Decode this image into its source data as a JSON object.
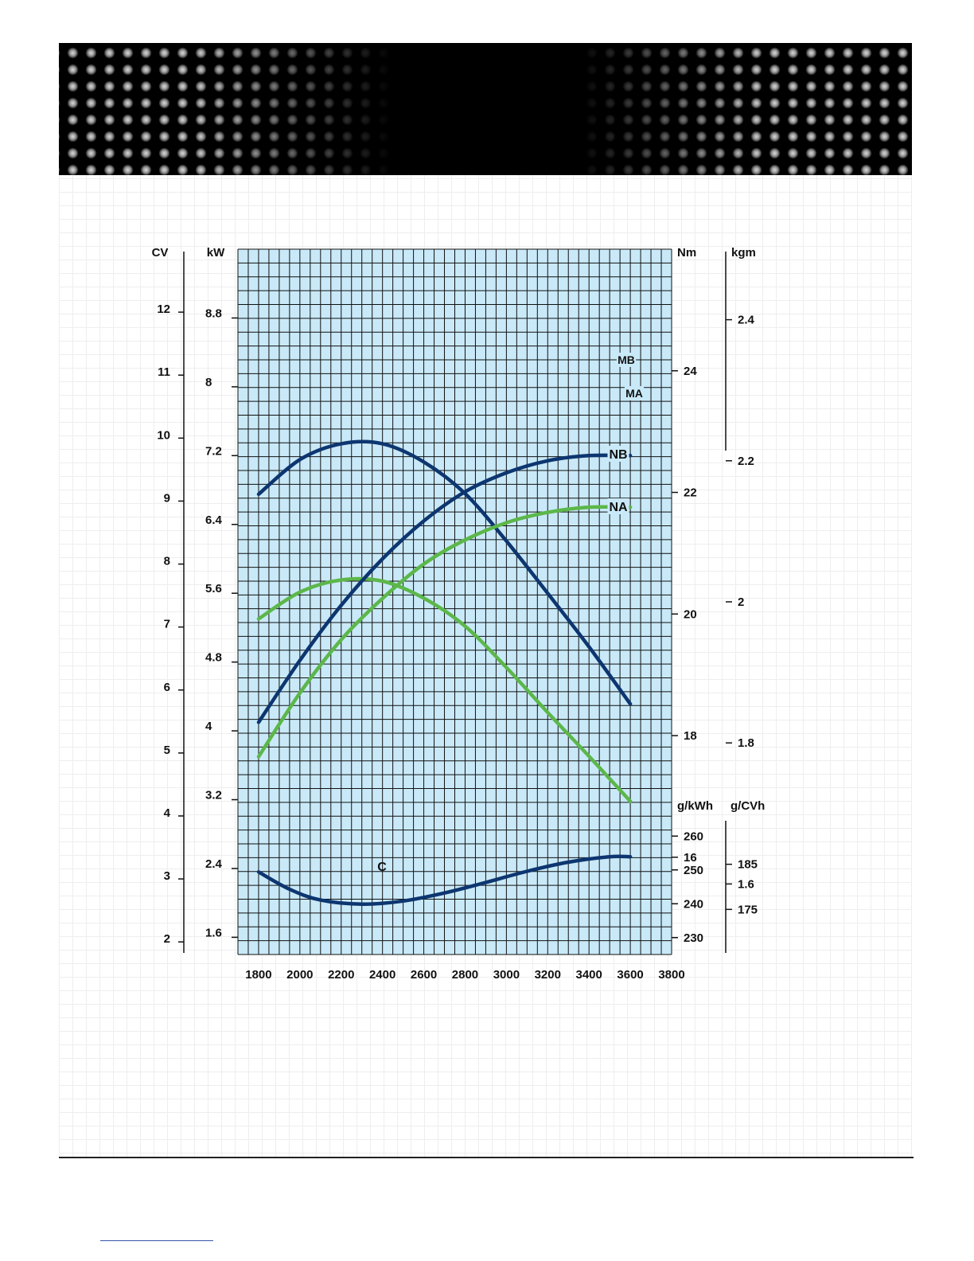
{
  "colors": {
    "plot_bg": "#c9e9f8",
    "grid": "#111111",
    "dark_curve": "#0d3670",
    "green_curve": "#5cb74a",
    "banner": "#000000"
  },
  "chart_data": {
    "type": "line",
    "title": "",
    "x": {
      "label": "",
      "range": [
        1700,
        3800
      ],
      "ticks": [
        1800,
        2000,
        2200,
        2400,
        2600,
        2800,
        3000,
        3200,
        3400,
        3600,
        3800
      ],
      "tick_labels": [
        "1800",
        "2000",
        "2200",
        "2400",
        "2600",
        "2800",
        "3000",
        "3200",
        "3400",
        "3600",
        "3800"
      ]
    },
    "axes": {
      "cv": {
        "label": "CV",
        "range": [
          1.8,
          13
        ],
        "ticks": [
          2,
          3,
          4,
          5,
          6,
          7,
          8,
          9,
          10,
          11,
          12
        ],
        "tick_labels": [
          "2",
          "3",
          "4",
          "5",
          "6",
          "7",
          "8",
          "9",
          "10",
          "11",
          "12"
        ]
      },
      "kw": {
        "label": "kW",
        "range": [
          1.4,
          9.6
        ],
        "ticks": [
          1.6,
          2.4,
          3.2,
          4,
          4.8,
          5.6,
          6.4,
          7.2,
          8,
          8.8
        ],
        "tick_labels": [
          "1.6",
          "2.4",
          "3.2",
          "4",
          "4.8",
          "5.6",
          "6.4",
          "7.2",
          "8",
          "8.8"
        ]
      },
      "nm": {
        "label": "Nm",
        "range": [
          14.4,
          26
        ],
        "ticks": [
          16,
          18,
          20,
          22,
          24
        ],
        "tick_labels": [
          "16",
          "18",
          "20",
          "22",
          "24"
        ]
      },
      "kgm": {
        "label": "kgm",
        "range": [
          1.5,
          2.5
        ],
        "ticks": [
          1.6,
          1.8,
          2,
          2.2,
          2.4
        ],
        "tick_labels": [
          "1.6",
          "1.8",
          "2",
          "2.2",
          "2.4"
        ]
      },
      "gkwh": {
        "label": "g/kWh",
        "range": [
          225,
          265
        ],
        "ticks": [
          230,
          240,
          250,
          260
        ],
        "tick_labels": [
          "230",
          "240",
          "250",
          "260"
        ]
      },
      "gcvh": {
        "label": "g/CVh",
        "range": [
          165,
          195
        ],
        "ticks": [
          175,
          185
        ],
        "tick_labels": [
          "175",
          "185"
        ]
      }
    },
    "series": [
      {
        "name": "MB",
        "axis": "nm",
        "color": "dark",
        "x": [
          1800,
          2000,
          2200,
          2400,
          2600,
          2800,
          3000,
          3200,
          3400,
          3600
        ],
        "y": [
          21.97,
          22.54,
          22.8,
          22.8,
          22.5,
          21.98,
          21.2,
          20.34,
          19.46,
          18.52
        ]
      },
      {
        "name": "MA",
        "axis": "nm",
        "color": "green",
        "x": [
          1800,
          2000,
          2200,
          2400,
          2600,
          2800,
          3000,
          3200,
          3400,
          3600
        ],
        "y": [
          19.92,
          20.36,
          20.56,
          20.54,
          20.26,
          19.8,
          19.12,
          18.38,
          17.66,
          16.92
        ]
      },
      {
        "name": "NB",
        "axis": "kw",
        "color": "dark",
        "x": [
          1800,
          2000,
          2200,
          2400,
          2600,
          2800,
          3000,
          3200,
          3400,
          3600
        ],
        "y": [
          4.1,
          4.82,
          5.46,
          6.0,
          6.44,
          6.78,
          7.0,
          7.14,
          7.2,
          7.2
        ]
      },
      {
        "name": "NA",
        "axis": "kw",
        "color": "green",
        "x": [
          1800,
          2000,
          2200,
          2400,
          2600,
          2800,
          3000,
          3200,
          3400,
          3600
        ],
        "y": [
          3.7,
          4.44,
          5.06,
          5.54,
          5.94,
          6.22,
          6.42,
          6.54,
          6.6,
          6.6
        ]
      },
      {
        "name": "C",
        "axis": "gkwh",
        "color": "dark",
        "x": [
          1800,
          1950,
          2100,
          2300,
          2500,
          2700,
          2900,
          3100,
          3300,
          3500,
          3600
        ],
        "y": [
          249.4,
          244.3,
          241.1,
          239.9,
          240.8,
          243.2,
          246.3,
          249.6,
          252.3,
          253.9,
          253.9
        ]
      }
    ]
  }
}
